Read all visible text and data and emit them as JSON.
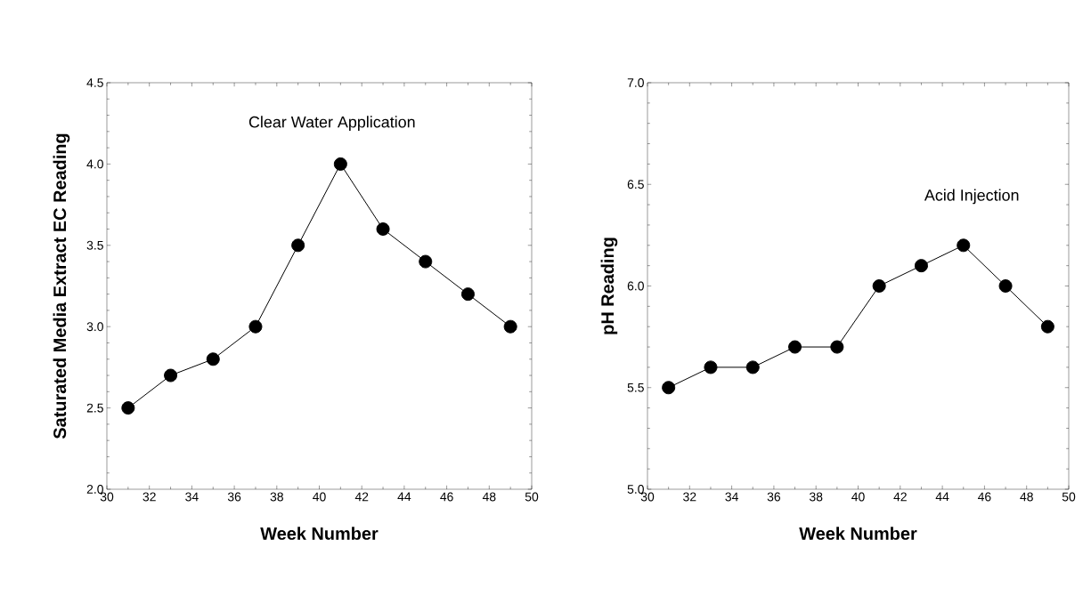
{
  "chart_data": [
    {
      "type": "line",
      "xlabel": "Week Number",
      "ylabel": "Saturated Media Extract EC Reading",
      "annotations": [
        "Clear Water Application"
      ],
      "x": [
        31,
        33,
        35,
        37,
        39,
        41,
        43,
        45,
        47,
        49
      ],
      "values": [
        2.5,
        2.7,
        2.8,
        3.0,
        3.5,
        4.0,
        3.6,
        3.4,
        3.2,
        3.0
      ],
      "color": "#000000",
      "marker": "circle",
      "line_style": "solid",
      "xlim": [
        30,
        50
      ],
      "xticks": [
        30,
        32,
        34,
        36,
        38,
        40,
        42,
        44,
        46,
        48,
        50
      ],
      "ylim": [
        2.0,
        4.5
      ],
      "yticks": [
        {
          "value": 2.0,
          "label": "2.0"
        },
        {
          "value": 2.5,
          "label": "2.5"
        },
        {
          "value": 3.0,
          "label": "3.0"
        },
        {
          "value": 3.5,
          "label": "3.5"
        },
        {
          "value": 4.0,
          "label": "4.0"
        },
        {
          "value": 4.5,
          "label": "4.5"
        }
      ]
    },
    {
      "type": "line",
      "xlabel": "Week Number",
      "ylabel": "pH Reading",
      "annotations": [
        "Acid Injection"
      ],
      "x": [
        31,
        33,
        35,
        37,
        39,
        41,
        43,
        45,
        47,
        49
      ],
      "values": [
        5.5,
        5.6,
        5.6,
        5.7,
        5.7,
        6.0,
        6.1,
        6.2,
        6.0,
        5.8
      ],
      "color": "#000000",
      "marker": "circle",
      "line_style": "solid",
      "xlim": [
        30,
        50
      ],
      "xticks": [
        30,
        32,
        34,
        36,
        38,
        40,
        42,
        44,
        46,
        48,
        50
      ],
      "ylim": [
        5.0,
        7.0
      ],
      "yticks": [
        {
          "value": 5.0,
          "label": "5.0"
        },
        {
          "value": 5.5,
          "label": "5.5"
        },
        {
          "value": 6.0,
          "label": "6.0"
        },
        {
          "value": 6.5,
          "label": "6.5"
        },
        {
          "value": 7.0,
          "label": "7.0"
        }
      ]
    }
  ]
}
